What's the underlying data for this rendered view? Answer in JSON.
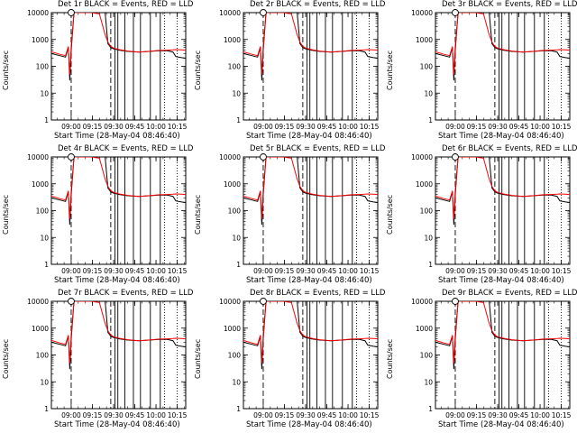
{
  "panels": [
    {
      "title": "Det  1r BLACK = Events, RED = LLD"
    },
    {
      "title": "Det  2r BLACK = Events, RED = LLD"
    },
    {
      "title": "Det  3r BLACK = Events, RED = LLD"
    },
    {
      "title": "Det  4r BLACK = Events, RED = LLD"
    },
    {
      "title": "Det  5r BLACK = Events, RED = LLD"
    },
    {
      "title": "Det  6r BLACK = Events, RED = LLD"
    },
    {
      "title": "Det  7r BLACK = Events, RED = LLD"
    },
    {
      "title": "Det  8r BLACK = Events, RED = LLD"
    },
    {
      "title": "Det  9r BLACK = Events, RED = LLD"
    }
  ],
  "colors": {
    "events": "#000000",
    "lld": "#ff0000",
    "background": "#ffffff"
  },
  "chart_data": {
    "type": "line",
    "xlabel": "Start Time (28-May-04 08:46:40)",
    "ylabel": "Counts/sec",
    "yscale": "log",
    "ylim": [
      1,
      10000
    ],
    "xlim": [
      "08:46",
      "10:21"
    ],
    "x_ticks": [
      "09:00",
      "09:15",
      "09:30",
      "09:45",
      "10:00",
      "10:15"
    ],
    "y_ticks": [
      "1",
      "10",
      "100",
      "1000",
      "10000"
    ],
    "series": [
      {
        "name": "Events",
        "x": [
          "08:46",
          "08:52",
          "08:56",
          "08:58",
          "08:59",
          "09:00",
          "09:02",
          "09:05",
          "09:08",
          "09:14",
          "09:20",
          "09:24",
          "09:26",
          "09:28",
          "09:30",
          "09:34",
          "09:40",
          "09:48",
          "09:55",
          "10:02",
          "10:08",
          "10:12",
          "10:14",
          "10:18",
          "10:21"
        ],
        "y": [
          300,
          250,
          220,
          500,
          30,
          400,
          10000,
          10000,
          10000,
          10000,
          10000,
          10000,
          700,
          500,
          450,
          400,
          360,
          340,
          360,
          380,
          380,
          340,
          230,
          210,
          200
        ]
      },
      {
        "name": "LLD",
        "x": [
          "08:46",
          "08:52",
          "08:56",
          "08:58",
          "08:59",
          "09:00",
          "09:02",
          "09:05",
          "09:08",
          "09:14",
          "09:20",
          "09:24",
          "09:26",
          "09:28",
          "09:30",
          "09:34",
          "09:40",
          "09:48",
          "09:55",
          "10:02",
          "10:08",
          "10:12",
          "10:14",
          "10:18",
          "10:21"
        ],
        "y": [
          350,
          280,
          250,
          550,
          50,
          600,
          10000,
          10000,
          10000,
          10000,
          9000,
          1500,
          800,
          550,
          480,
          420,
          370,
          340,
          360,
          390,
          400,
          410,
          420,
          410,
          400
        ]
      }
    ],
    "dashed_markers": [
      "09:00",
      "09:28"
    ],
    "dotted_markers": [
      "10:06",
      "10:15"
    ],
    "solid_markers": [
      "09:31",
      "09:33",
      "09:38",
      "09:44",
      "09:49",
      "09:56",
      "10:03"
    ],
    "symbol": {
      "shape": "circle",
      "x": "09:00",
      "y": 10000
    },
    "legend": "none",
    "grid": false
  }
}
